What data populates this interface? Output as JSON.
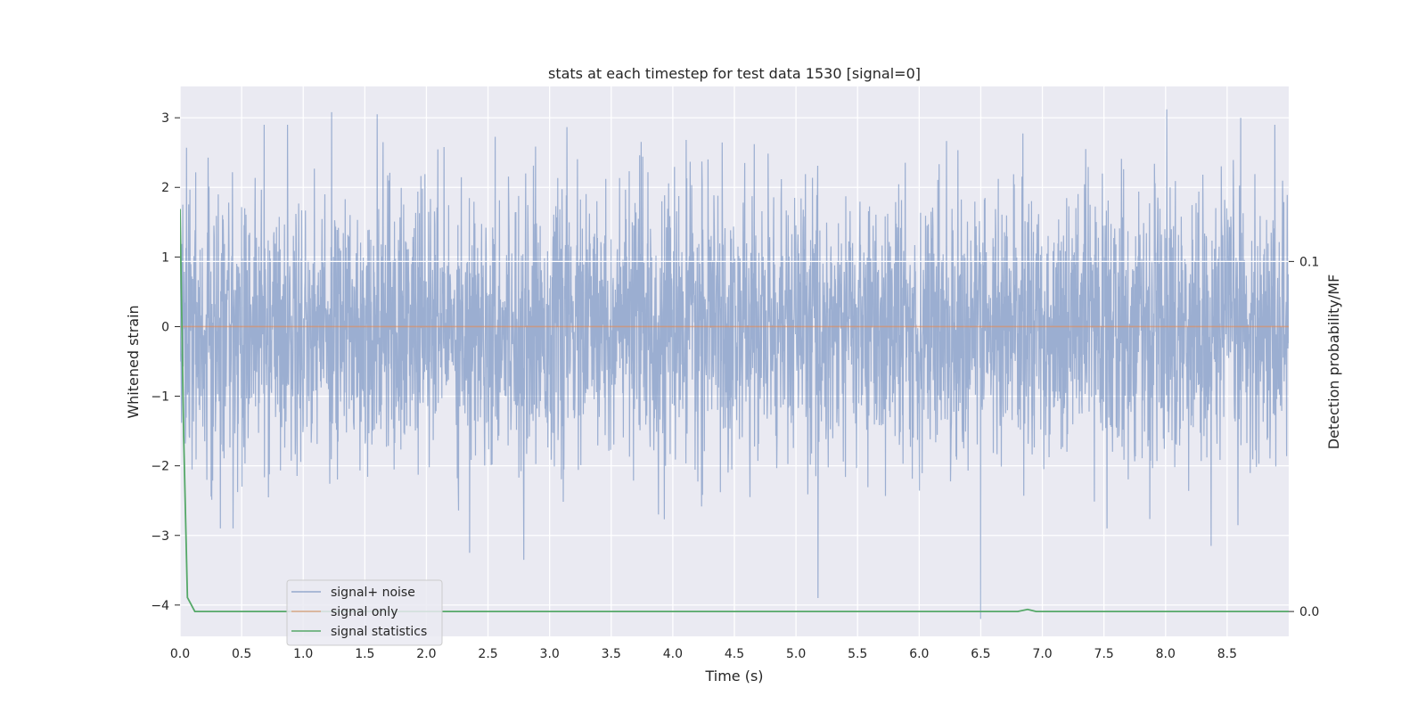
{
  "chart_data": {
    "type": "line",
    "title": "stats at each timestep for test data 1530 [signal=0]",
    "xlabel": "Time (s)",
    "ylabel": "Whitened strain",
    "ylabel_right": "Detection probability/MF",
    "xlim": [
      0.0,
      9.0
    ],
    "ylim": [
      -4.45,
      3.45
    ],
    "ylim_right": [
      -0.0071,
      0.15
    ],
    "x_ticks": [
      "0.0",
      "0.5",
      "1.0",
      "1.5",
      "2.0",
      "2.5",
      "3.0",
      "3.5",
      "4.0",
      "4.5",
      "5.0",
      "5.5",
      "6.0",
      "6.5",
      "7.0",
      "7.5",
      "8.0",
      "8.5"
    ],
    "y_ticks": [
      "3",
      "2",
      "1",
      "0",
      "−1",
      "−2",
      "−3",
      "−4"
    ],
    "y_ticks_right": [
      "0.1",
      "0.0"
    ],
    "grid": true,
    "legend_position": "lower-left",
    "series": [
      {
        "name": "signal+ noise",
        "axis": "left",
        "color": "#4c72b0",
        "description": "whitened noisy strain, roughly Gaussian, sampled densely",
        "std": 0.95,
        "peaks": [
          [
            1.23,
            3.08
          ],
          [
            1.6,
            3.05
          ],
          [
            8.01,
            3.12
          ],
          [
            8.61,
            3.0
          ],
          [
            5.18,
            -3.9
          ],
          [
            6.5,
            -4.2
          ],
          [
            2.79,
            -3.35
          ],
          [
            2.35,
            -3.25
          ],
          [
            8.37,
            -3.15
          ]
        ]
      },
      {
        "name": "signal only",
        "axis": "left",
        "color": "#dd8452",
        "x": [
          0.0,
          9.0
        ],
        "y": [
          0.0,
          0.0
        ]
      },
      {
        "name": "signal statistics",
        "axis": "right",
        "color": "#55a868",
        "x": [
          0.0,
          0.03,
          0.06,
          0.12,
          6.8,
          6.88,
          6.95,
          9.0
        ],
        "y": [
          0.115,
          0.05,
          0.004,
          0.0,
          0.0,
          0.0006,
          0.0,
          0.0
        ]
      }
    ],
    "right_axis_hline": 0.1
  }
}
